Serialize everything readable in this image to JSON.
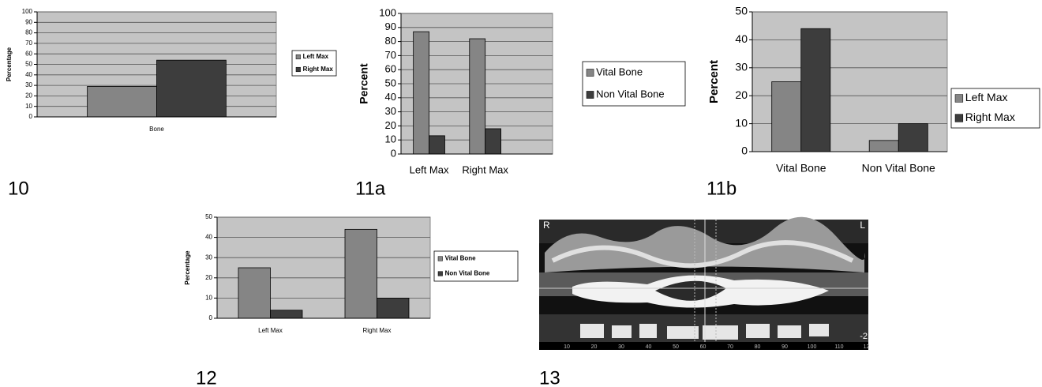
{
  "chart_data": [
    {
      "type": "bar",
      "ylabel": "Percentage",
      "categories": [
        "Bone"
      ],
      "series": [
        {
          "name": "Left Max",
          "color": "#858585",
          "values": [
            29
          ]
        },
        {
          "name": "Right Max",
          "color": "#3d3d3d",
          "values": [
            54
          ]
        }
      ],
      "ylim": [
        0,
        100
      ],
      "yticks": [
        0,
        10,
        20,
        30,
        40,
        50,
        60,
        70,
        80,
        90,
        100
      ],
      "grid": true
    },
    {
      "type": "bar",
      "ylabel": "Percent",
      "categories": [
        "Left Max",
        "Right Max"
      ],
      "series": [
        {
          "name": "Vital Bone",
          "color": "#858585",
          "values": [
            87,
            82
          ]
        },
        {
          "name": "Non Vital Bone",
          "color": "#3d3d3d",
          "values": [
            13,
            18
          ]
        }
      ],
      "ylim": [
        0,
        100
      ],
      "yticks": [
        0,
        10,
        20,
        30,
        40,
        50,
        60,
        70,
        80,
        90,
        100
      ],
      "grid": true
    },
    {
      "type": "bar",
      "ylabel": "Percent",
      "categories": [
        "Vital Bone",
        "Non Vital Bone"
      ],
      "series": [
        {
          "name": "Left Max",
          "color": "#858585",
          "values": [
            25,
            4
          ]
        },
        {
          "name": "Right Max",
          "color": "#3d3d3d",
          "values": [
            44,
            10
          ]
        }
      ],
      "ylim": [
        0,
        50
      ],
      "yticks": [
        0,
        10,
        20,
        30,
        40,
        50
      ],
      "grid": true
    },
    {
      "type": "bar",
      "ylabel": "Percentage",
      "categories": [
        "Left Max",
        "Right Max"
      ],
      "series": [
        {
          "name": "Vital Bone",
          "color": "#858585",
          "values": [
            25,
            44
          ]
        },
        {
          "name": "Non Vital Bone",
          "color": "#3d3d3d",
          "values": [
            4,
            10
          ]
        }
      ],
      "ylim": [
        0,
        50
      ],
      "yticks": [
        0,
        10,
        20,
        30,
        40,
        50
      ],
      "grid": true
    }
  ],
  "panel_labels": [
    "10",
    "11a",
    "11b",
    "12",
    "13"
  ],
  "ct_image": {
    "corner_labels": [
      "R",
      "L"
    ],
    "side_label": "-2",
    "scale_labels": [
      "10",
      "20",
      "30",
      "40",
      "50",
      "60",
      "70",
      "80",
      "90",
      "100",
      "110",
      "12"
    ]
  }
}
